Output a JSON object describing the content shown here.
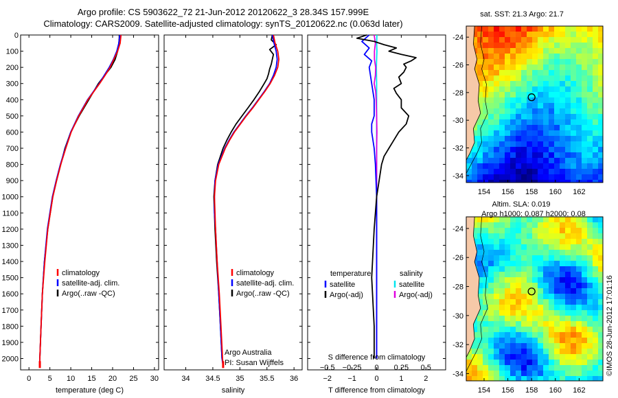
{
  "header": {
    "title_line1": "Argo profile: CS 5903622_72 21-Jun-2012 20120622_3 28.34S 157.999E",
    "title_line2": "Climatology: CARS2009. Satellite-adjusted climatology: synTS_20120622.nc (0.063d later)"
  },
  "side_stamp": "©IMOS 28-Jun-2012 17:01:16",
  "colors": {
    "climatology": "#ff0000",
    "satellite": "#0000ff",
    "argo": "#000000",
    "salinity_satellite": "#00e5ee",
    "salinity_argo": "#e000e0",
    "land": "#f6c9a8"
  },
  "chart_data": [
    {
      "id": "temperature",
      "type": "line",
      "xlabel": "temperature (deg C)",
      "ylabel": "",
      "xlim": [
        -2,
        31
      ],
      "ylim": [
        2070,
        0
      ],
      "xticks": [
        0,
        5,
        10,
        15,
        20,
        25,
        30
      ],
      "yticks": [
        0,
        100,
        200,
        300,
        400,
        500,
        600,
        700,
        800,
        900,
        1000,
        1100,
        1200,
        1300,
        1400,
        1500,
        1600,
        1700,
        1800,
        1900,
        2000
      ],
      "legend": [
        "climatology",
        "satellite-adj. clim.",
        "Argo(..raw -QC)"
      ],
      "series": [
        {
          "name": "climatology",
          "depth": [
            0,
            50,
            100,
            150,
            200,
            250,
            300,
            400,
            500,
            600,
            700,
            800,
            900,
            1000,
            1200,
            1400,
            1600,
            1800,
            2000,
            2050
          ],
          "values": [
            22.0,
            21.8,
            21.2,
            20.3,
            19.4,
            18.2,
            16.9,
            14.1,
            11.9,
            10.1,
            8.8,
            7.6,
            6.6,
            5.7,
            4.5,
            3.8,
            3.2,
            2.9,
            2.6,
            2.6
          ]
        },
        {
          "name": "satellite-adj. clim.",
          "depth": [
            0,
            50,
            100,
            150,
            200,
            250,
            300,
            400,
            500,
            600,
            700,
            800,
            900,
            1000,
            1200,
            1400,
            1600,
            1800,
            2000,
            2050
          ],
          "values": [
            21.7,
            21.5,
            21.0,
            20.2,
            19.2,
            18.0,
            16.8,
            14.0,
            11.8,
            10.0,
            8.7,
            7.5,
            6.5,
            5.6,
            4.4,
            3.7,
            3.2,
            2.9,
            2.6,
            2.5
          ]
        },
        {
          "name": "Argo(..raw -QC)",
          "depth": [
            0,
            20,
            50,
            100,
            150,
            200,
            250,
            300,
            400,
            500,
            600,
            700,
            800,
            900,
            1000,
            1200,
            1400,
            1600,
            1800,
            2000
          ],
          "values": [
            21.6,
            21.6,
            21.5,
            21.2,
            20.6,
            19.6,
            18.1,
            16.6,
            14.3,
            12.0,
            10.0,
            8.6,
            7.6,
            6.6,
            5.7,
            4.5,
            3.7,
            3.2,
            2.9,
            2.6
          ]
        }
      ]
    },
    {
      "id": "salinity",
      "type": "line",
      "xlabel": "salinity",
      "ylabel": "",
      "xlim": [
        33.6,
        36.15
      ],
      "ylim": [
        2070,
        0
      ],
      "xticks": [
        34,
        34.5,
        35,
        35.5,
        36
      ],
      "xtick_labels": [
        "34",
        "34.5",
        "35",
        "35.5",
        "36"
      ],
      "legend": [
        "climatology",
        "satellite-adj. clim.",
        "Argo(..raw -QC)"
      ],
      "annotation": [
        "Argo Australia",
        "PI: Susan Wijffels"
      ],
      "series": [
        {
          "name": "climatology",
          "depth": [
            0,
            50,
            100,
            150,
            200,
            250,
            300,
            350,
            400,
            450,
            500,
            550,
            600,
            650,
            700,
            800,
            900,
            1000,
            1100,
            1200,
            1400,
            1600,
            1800,
            2000,
            2050
          ],
          "values": [
            35.62,
            35.65,
            35.7,
            35.72,
            35.7,
            35.64,
            35.56,
            35.46,
            35.35,
            35.24,
            35.12,
            35.01,
            34.9,
            34.81,
            34.73,
            34.61,
            34.55,
            34.53,
            34.54,
            34.55,
            34.58,
            34.62,
            34.65,
            34.68,
            34.69
          ]
        },
        {
          "name": "satellite-adj. clim.",
          "depth": [
            0,
            50,
            100,
            150,
            200,
            250,
            300,
            350,
            400,
            450,
            500,
            550,
            600,
            650,
            700,
            800,
            900,
            1000,
            1100,
            1200,
            1400,
            1600,
            1800,
            2000,
            2050
          ],
          "values": [
            35.6,
            35.63,
            35.67,
            35.69,
            35.67,
            35.62,
            35.55,
            35.45,
            35.34,
            35.23,
            35.11,
            35.0,
            34.89,
            34.8,
            34.72,
            34.6,
            34.54,
            34.53,
            34.53,
            34.55,
            34.58,
            34.61,
            34.64,
            34.67,
            34.69
          ]
        },
        {
          "name": "Argo(..raw -QC)",
          "depth": [
            0,
            30,
            60,
            90,
            120,
            150,
            180,
            210,
            240,
            270,
            300,
            350,
            400,
            450,
            500,
            550,
            600,
            650,
            700,
            800,
            900,
            1000,
            1100,
            1200,
            1400,
            1600,
            1800,
            2000
          ],
          "values": [
            35.6,
            35.58,
            35.67,
            35.55,
            35.62,
            35.6,
            35.58,
            35.55,
            35.53,
            35.5,
            35.45,
            35.36,
            35.26,
            35.15,
            35.04,
            34.93,
            34.84,
            34.76,
            34.69,
            34.59,
            34.54,
            34.52,
            34.53,
            34.54,
            34.57,
            34.61,
            34.64,
            34.67
          ]
        }
      ]
    },
    {
      "id": "difference",
      "type": "line",
      "xlabel": "T difference from climatology",
      "xlabel_top": "S difference from climatology",
      "xlim": [
        -2.8,
        2.8
      ],
      "ylim": [
        2070,
        0
      ],
      "xticks": [
        -2,
        -1,
        0,
        1,
        2
      ],
      "s_ticks": [
        -0.5,
        -0.25,
        0,
        0.25,
        0.5
      ],
      "s_tick_labels": [
        "−0.5",
        "−0.25",
        "0",
        "0.25",
        "0.5"
      ],
      "legend_temperature_title": "temperature",
      "legend_salinity_title": "salinity",
      "legend": [
        "satellite",
        "Argo(-adj)",
        "satellite",
        "Argo(-adj)"
      ],
      "series": [
        {
          "name": "temperature satellite",
          "depth": [
            0,
            40,
            80,
            120,
            160,
            200,
            300,
            400,
            500,
            550,
            600,
            700,
            800,
            1000,
            1500,
            2000
          ],
          "values": [
            -0.3,
            -0.6,
            -0.3,
            -0.5,
            -0.2,
            -0.3,
            -0.2,
            -0.1,
            -0.1,
            -0.2,
            -0.2,
            -0.1,
            -0.05,
            0,
            0,
            0
          ]
        },
        {
          "name": "temperature Argo(-adj)",
          "depth": [
            0,
            20,
            40,
            60,
            80,
            100,
            120,
            140,
            160,
            180,
            200,
            230,
            260,
            300,
            330,
            360,
            400,
            450,
            500,
            550,
            600,
            650,
            700,
            750,
            800,
            900,
            1000,
            1200,
            1500,
            1800,
            2000
          ],
          "values": [
            -0.4,
            -0.8,
            -0.1,
            0.3,
            0.8,
            0.5,
            1.0,
            1.6,
            1.4,
            1.1,
            1.2,
            1.1,
            0.9,
            1.0,
            0.7,
            0.8,
            1.0,
            1.0,
            1.3,
            1.2,
            0.9,
            0.7,
            0.5,
            0.3,
            0.2,
            0.1,
            0.0,
            -0.1,
            -0.2,
            -0.1,
            -0.1
          ]
        },
        {
          "name": "salinity satellite",
          "depth": [
            0,
            50,
            100,
            200,
            300,
            500,
            800,
            1000,
            1500,
            2000
          ],
          "values": [
            0.01,
            0.0,
            0.01,
            -0.01,
            0.0,
            0.0,
            0.0,
            0.0,
            0.0,
            0.0
          ]
        },
        {
          "name": "salinity Argo(-adj)",
          "depth": [
            0,
            50,
            100,
            150,
            200,
            250,
            300,
            350,
            400,
            500,
            600,
            700,
            800,
            1000,
            1500,
            2000
          ],
          "values": [
            -0.1,
            -0.05,
            -0.09,
            -0.09,
            -0.04,
            -0.05,
            -0.1,
            -0.04,
            -0.02,
            0,
            0.01,
            0,
            0,
            0,
            0,
            0
          ]
        }
      ]
    }
  ],
  "maps": [
    {
      "id": "sst-map",
      "title_lines": [
        "sat. SST: 21.3 Argo: 21.7"
      ],
      "lon_ticks": [
        154,
        156,
        158,
        160,
        162
      ],
      "lat_ticks": [
        "-24",
        "-26",
        "-28",
        "-30",
        "-32",
        "-34"
      ],
      "lon_range": [
        152.5,
        164
      ],
      "lat_range": [
        -34.5,
        -23.2
      ],
      "profile_marker": {
        "lon": 158.0,
        "lat": -28.34
      }
    },
    {
      "id": "sla-map",
      "title_lines": [
        "Altim. SLA: 0.019",
        "Argo h1000: 0.087 h2000: 0.08"
      ],
      "lon_ticks": [
        154,
        156,
        158,
        160,
        162
      ],
      "lat_ticks": [
        "-24",
        "-26",
        "-28",
        "-30",
        "-32",
        "-34"
      ],
      "lon_range": [
        152.5,
        164
      ],
      "lat_range": [
        -34.5,
        -23.2
      ],
      "profile_marker": {
        "lon": 158.0,
        "lat": -28.34
      }
    }
  ]
}
